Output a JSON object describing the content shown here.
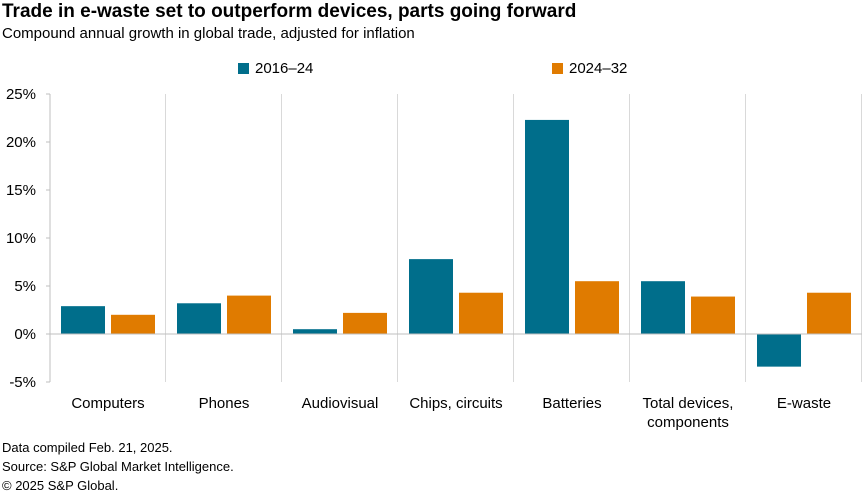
{
  "chart_data": {
    "type": "bar",
    "title": "Trade in e-waste set to outperform devices, parts going forward",
    "subtitle": "Compound annual growth in global trade, adjusted for inflation",
    "categories": [
      [
        "Computers"
      ],
      [
        "Phones"
      ],
      [
        "Audiovisual"
      ],
      [
        "Chips, circuits"
      ],
      [
        "Batteries"
      ],
      [
        "Total devices,",
        "components"
      ],
      [
        "E-waste"
      ]
    ],
    "series": [
      {
        "name": "2016–24",
        "color": "#006e8b",
        "values": [
          2.9,
          3.2,
          0.5,
          7.8,
          22.3,
          5.5,
          -3.4
        ]
      },
      {
        "name": "2024–32",
        "color": "#e07b00",
        "values": [
          2.0,
          4.0,
          2.2,
          4.3,
          5.5,
          3.9,
          4.3
        ]
      }
    ],
    "ylim": [
      -5,
      25
    ],
    "yticks": [
      -5,
      0,
      5,
      10,
      15,
      20,
      25
    ],
    "ytick_suffix": "%",
    "xlabel": "",
    "ylabel": "",
    "grid": false,
    "legend_position": "top"
  },
  "footer": {
    "line1": "Data compiled Feb. 21, 2025.",
    "line2": "Source: S&P Global Market Intelligence.",
    "line3": "© 2025 S&P Global."
  }
}
